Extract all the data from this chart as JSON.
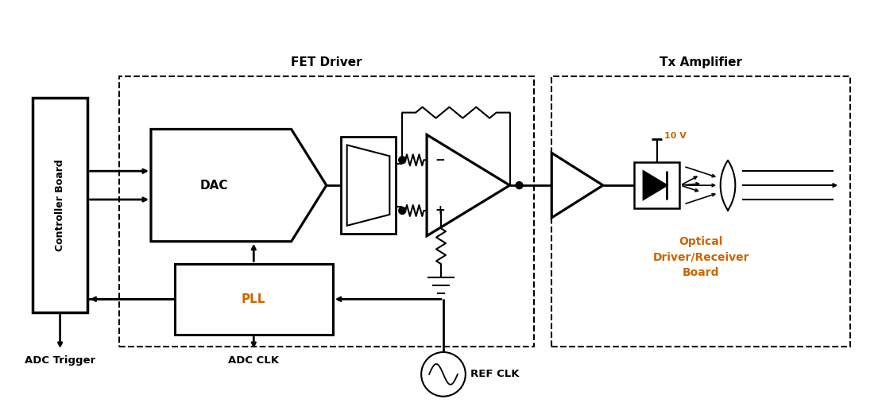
{
  "background_color": "#ffffff",
  "line_color": "#000000",
  "orange_color": "#cc6600",
  "figsize": [
    11.1,
    5.12
  ],
  "dpi": 100,
  "labels": {
    "fet_driver": "FET Driver",
    "tx_amplifier": "Tx Amplifier",
    "controller_board": "Controller Board",
    "dac": "DAC",
    "pll": "PLL",
    "optical_board": "Optical\nDriver/Receiver\nBoard",
    "adc_trigger": "ADC Trigger",
    "adc_clk": "ADC CLK",
    "ref_clk": "REF CLK",
    "voltage": "10 V",
    "minus": "-",
    "plus": "+"
  }
}
